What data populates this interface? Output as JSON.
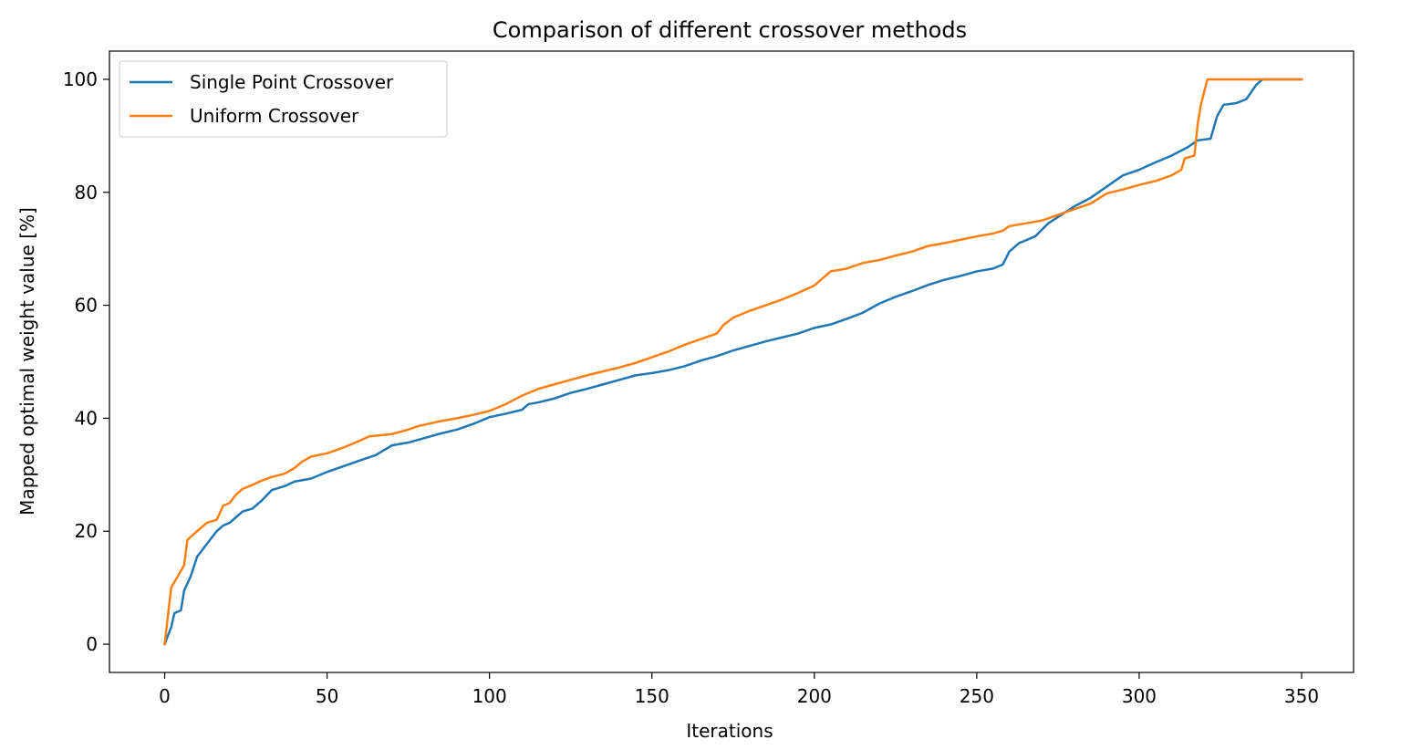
{
  "chart_data": {
    "type": "line",
    "title": "Comparison of different crossover methods",
    "xlabel": "Iterations",
    "ylabel": "Mapped optimal weight value [%]",
    "xlim": [
      -17,
      366
    ],
    "ylim": [
      -5,
      105
    ],
    "xticks": [
      0,
      50,
      100,
      150,
      200,
      250,
      300,
      350
    ],
    "yticks": [
      0,
      20,
      40,
      60,
      80,
      100
    ],
    "grid": false,
    "legend_position": "top-left",
    "series": [
      {
        "name": "Single Point Crossover",
        "color": "#1f77b4",
        "points": [
          [
            0,
            0
          ],
          [
            2,
            3
          ],
          [
            3,
            5.5
          ],
          [
            5,
            6
          ],
          [
            6,
            9.5
          ],
          [
            8,
            12
          ],
          [
            10,
            15.5
          ],
          [
            12,
            17
          ],
          [
            14,
            18.5
          ],
          [
            16,
            20
          ],
          [
            18,
            21
          ],
          [
            20,
            21.5
          ],
          [
            22,
            22.5
          ],
          [
            24,
            23.5
          ],
          [
            27,
            24
          ],
          [
            30,
            25.5
          ],
          [
            33,
            27.3
          ],
          [
            37,
            28
          ],
          [
            40,
            28.8
          ],
          [
            45,
            29.3
          ],
          [
            50,
            30.5
          ],
          [
            55,
            31.5
          ],
          [
            60,
            32.5
          ],
          [
            65,
            33.5
          ],
          [
            70,
            35.2
          ],
          [
            75,
            35.7
          ],
          [
            80,
            36.5
          ],
          [
            85,
            37.3
          ],
          [
            90,
            38
          ],
          [
            95,
            39
          ],
          [
            100,
            40.2
          ],
          [
            105,
            40.8
          ],
          [
            110,
            41.5
          ],
          [
            112,
            42.5
          ],
          [
            115,
            42.8
          ],
          [
            120,
            43.5
          ],
          [
            125,
            44.5
          ],
          [
            130,
            45.2
          ],
          [
            135,
            46
          ],
          [
            140,
            46.8
          ],
          [
            145,
            47.6
          ],
          [
            150,
            48
          ],
          [
            155,
            48.5
          ],
          [
            160,
            49.2
          ],
          [
            165,
            50.2
          ],
          [
            170,
            51
          ],
          [
            175,
            52
          ],
          [
            180,
            52.8
          ],
          [
            185,
            53.6
          ],
          [
            190,
            54.3
          ],
          [
            195,
            55
          ],
          [
            200,
            56
          ],
          [
            205,
            56.6
          ],
          [
            210,
            57.6
          ],
          [
            215,
            58.7
          ],
          [
            220,
            60.3
          ],
          [
            225,
            61.5
          ],
          [
            230,
            62.5
          ],
          [
            235,
            63.6
          ],
          [
            240,
            64.5
          ],
          [
            245,
            65.2
          ],
          [
            250,
            66
          ],
          [
            255,
            66.5
          ],
          [
            258,
            67.2
          ],
          [
            260,
            69.5
          ],
          [
            263,
            71
          ],
          [
            268,
            72.2
          ],
          [
            272,
            74.5
          ],
          [
            276,
            76
          ],
          [
            280,
            77.5
          ],
          [
            285,
            79
          ],
          [
            290,
            81
          ],
          [
            295,
            83
          ],
          [
            300,
            84
          ],
          [
            305,
            85.3
          ],
          [
            310,
            86.5
          ],
          [
            315,
            88
          ],
          [
            318,
            89.2
          ],
          [
            322,
            89.5
          ],
          [
            324,
            93.5
          ],
          [
            326,
            95.5
          ],
          [
            330,
            95.8
          ],
          [
            333,
            96.5
          ],
          [
            336,
            99
          ],
          [
            338,
            100
          ],
          [
            350,
            100
          ]
        ]
      },
      {
        "name": "Uniform Crossover",
        "color": "#ff7f0e",
        "points": [
          [
            0,
            0
          ],
          [
            2,
            10
          ],
          [
            4,
            12
          ],
          [
            6,
            14
          ],
          [
            7,
            18.5
          ],
          [
            9,
            19.5
          ],
          [
            11,
            20.5
          ],
          [
            13,
            21.5
          ],
          [
            16,
            22
          ],
          [
            18,
            24.5
          ],
          [
            20,
            25
          ],
          [
            22,
            26.5
          ],
          [
            24,
            27.5
          ],
          [
            27,
            28.2
          ],
          [
            30,
            29
          ],
          [
            33,
            29.6
          ],
          [
            37,
            30.2
          ],
          [
            40,
            31.2
          ],
          [
            42,
            32.2
          ],
          [
            45,
            33.2
          ],
          [
            50,
            33.8
          ],
          [
            55,
            34.8
          ],
          [
            60,
            36
          ],
          [
            63,
            36.8
          ],
          [
            70,
            37.2
          ],
          [
            75,
            38
          ],
          [
            78,
            38.6
          ],
          [
            85,
            39.5
          ],
          [
            90,
            40
          ],
          [
            95,
            40.6
          ],
          [
            100,
            41.3
          ],
          [
            105,
            42.5
          ],
          [
            110,
            44
          ],
          [
            115,
            45.2
          ],
          [
            120,
            46
          ],
          [
            125,
            46.8
          ],
          [
            130,
            47.6
          ],
          [
            135,
            48.3
          ],
          [
            140,
            49
          ],
          [
            145,
            49.8
          ],
          [
            150,
            50.8
          ],
          [
            155,
            51.8
          ],
          [
            160,
            53
          ],
          [
            165,
            54
          ],
          [
            170,
            55
          ],
          [
            172,
            56.5
          ],
          [
            175,
            57.8
          ],
          [
            180,
            59
          ],
          [
            185,
            60
          ],
          [
            190,
            61
          ],
          [
            195,
            62.2
          ],
          [
            200,
            63.5
          ],
          [
            202,
            64.5
          ],
          [
            205,
            66
          ],
          [
            210,
            66.5
          ],
          [
            215,
            67.5
          ],
          [
            220,
            68
          ],
          [
            225,
            68.8
          ],
          [
            230,
            69.5
          ],
          [
            235,
            70.5
          ],
          [
            240,
            71
          ],
          [
            245,
            71.6
          ],
          [
            250,
            72.2
          ],
          [
            255,
            72.7
          ],
          [
            258,
            73.2
          ],
          [
            260,
            74
          ],
          [
            265,
            74.5
          ],
          [
            270,
            75
          ],
          [
            275,
            76
          ],
          [
            280,
            77
          ],
          [
            285,
            78
          ],
          [
            290,
            79.8
          ],
          [
            295,
            80.5
          ],
          [
            300,
            81.3
          ],
          [
            305,
            82
          ],
          [
            310,
            83
          ],
          [
            313,
            84
          ],
          [
            314,
            86
          ],
          [
            317,
            86.5
          ],
          [
            318,
            92
          ],
          [
            319,
            95.5
          ],
          [
            321,
            100
          ],
          [
            350,
            100
          ]
        ]
      }
    ]
  }
}
